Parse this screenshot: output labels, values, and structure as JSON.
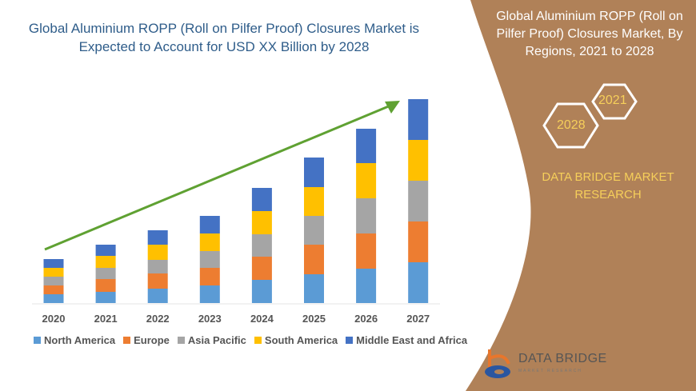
{
  "title": "Global Aluminium ROPP (Roll on Pilfer Proof) Closures Market is Expected to Account for USD XX Billion by 2028",
  "side_panel": {
    "title": "Global Aluminium ROPP (Roll on Pilfer Proof) Closures Market, By Regions, 2021 to 2028",
    "hex_a": "2021",
    "hex_b": "2028",
    "brand_line1": "DATA BRIDGE MARKET",
    "brand_line2": "RESEARCH",
    "logo_text": "DATA BRIDGE",
    "logo_sub": "MARKET RESEARCH",
    "color": "#b08158"
  },
  "chart_data": {
    "type": "bar",
    "stacked": true,
    "title": "",
    "xlabel": "",
    "ylabel": "",
    "categories": [
      "2020",
      "2021",
      "2022",
      "2023",
      "2024",
      "2025",
      "2026",
      "2027"
    ],
    "series": [
      {
        "name": "North America",
        "color": "#5b9bd5",
        "values": [
          11,
          14,
          18,
          22,
          29,
          36,
          43,
          51
        ]
      },
      {
        "name": "Europe",
        "color": "#ed7d31",
        "values": [
          11,
          16,
          19,
          22,
          29,
          37,
          44,
          51
        ]
      },
      {
        "name": "Asia Pacific",
        "color": "#a5a5a5",
        "values": [
          11,
          14,
          17,
          21,
          28,
          36,
          44,
          51
        ]
      },
      {
        "name": "South America",
        "color": "#ffc000",
        "values": [
          11,
          15,
          19,
          22,
          29,
          36,
          44,
          51
        ]
      },
      {
        "name": "Middle East and Africa",
        "color": "#4472c4",
        "values": [
          11,
          14,
          18,
          22,
          29,
          37,
          43,
          51
        ]
      }
    ],
    "legend": "bottom",
    "grid": false,
    "trend_arrow_color": "#5fa132"
  }
}
